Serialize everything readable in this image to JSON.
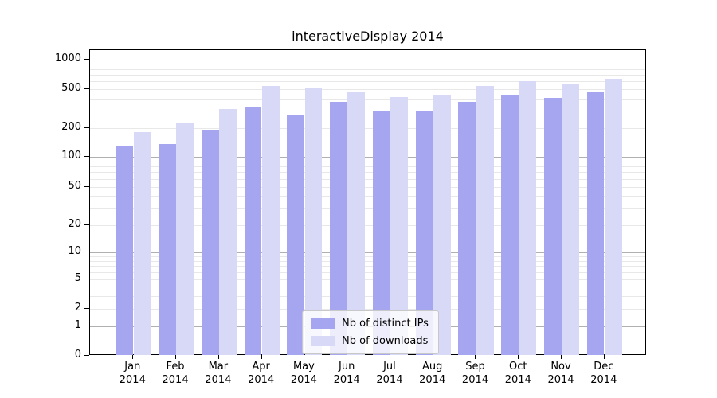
{
  "title": "interactiveDisplay 2014",
  "legend": {
    "position": "lower center"
  },
  "chart_data": {
    "type": "bar",
    "title": "interactiveDisplay 2014",
    "categories": [
      "Jan 2014",
      "Feb 2014",
      "Mar 2014",
      "Apr 2014",
      "May 2014",
      "Jun 2014",
      "Jul 2014",
      "Aug 2014",
      "Sep 2014",
      "Oct 2014",
      "Nov 2014",
      "Dec 2014"
    ],
    "series": [
      {
        "name": "Nb of distinct IPs",
        "color": "#a5a5f0",
        "values": [
          128,
          137,
          194,
          331,
          277,
          373,
          303,
          299,
          368,
          436,
          409,
          467
        ]
      },
      {
        "name": "Nb of downloads",
        "color": "#d8d8f7",
        "values": [
          182,
          230,
          315,
          537,
          520,
          473,
          415,
          436,
          543,
          600,
          571,
          634
        ]
      }
    ],
    "xlabel": "",
    "ylabel": "",
    "yscale": "symlog",
    "yticks": [
      0,
      1,
      2,
      5,
      10,
      20,
      50,
      100,
      200,
      500,
      1000
    ],
    "ylim": [
      0,
      1200
    ],
    "grid": "major-and-minor",
    "legend_position": "lower center",
    "colors": {
      "major_grid": "#b0b0b0",
      "minor_grid": "#e8e8e8",
      "spine": "#000000",
      "background": "#ffffff"
    }
  }
}
